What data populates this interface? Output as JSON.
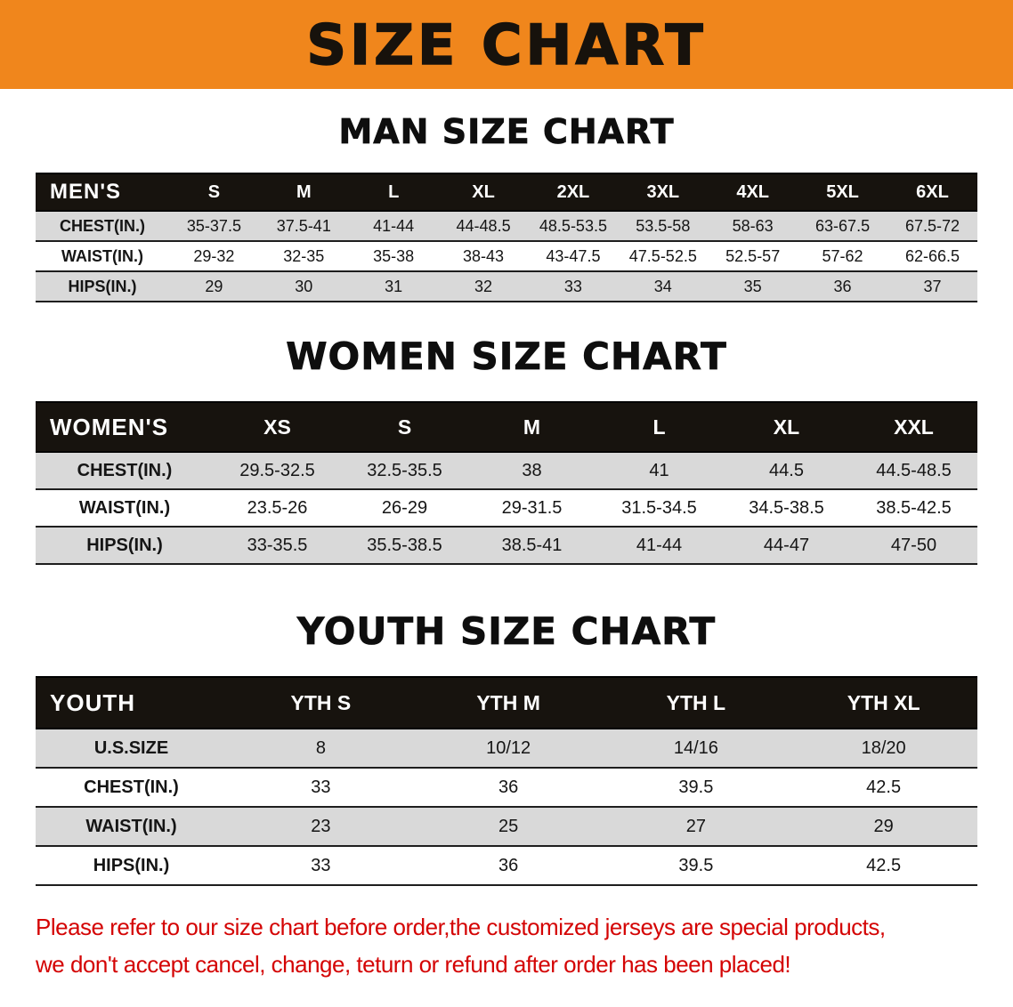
{
  "banner": {
    "title": "SIZE CHART"
  },
  "colors": {
    "banner_bg": "#f0861c",
    "table_header_bg": "#17130e",
    "row_gray": "#d9d9d9",
    "disclaimer_red": "#d40404"
  },
  "chart_data": [
    {
      "type": "table",
      "id": "men",
      "title": "MAN SIZE CHART",
      "columns": [
        "MEN'S",
        "S",
        "M",
        "L",
        "XL",
        "2XL",
        "3XL",
        "4XL",
        "5XL",
        "6XL"
      ],
      "rows": [
        [
          "CHEST(IN.)",
          "35-37.5",
          "37.5-41",
          "41-44",
          "44-48.5",
          "48.5-53.5",
          "53.5-58",
          "58-63",
          "63-67.5",
          "67.5-72"
        ],
        [
          "WAIST(IN.)",
          "29-32",
          "32-35",
          "35-38",
          "38-43",
          "43-47.5",
          "47.5-52.5",
          "52.5-57",
          "57-62",
          "62-66.5"
        ],
        [
          "HIPS(IN.)",
          "29",
          "30",
          "31",
          "32",
          "33",
          "34",
          "35",
          "36",
          "37"
        ]
      ]
    },
    {
      "type": "table",
      "id": "women",
      "title": "WOMEN SIZE CHART",
      "columns": [
        "WOMEN'S",
        "XS",
        "S",
        "M",
        "L",
        "XL",
        "XXL"
      ],
      "rows": [
        [
          "CHEST(IN.)",
          "29.5-32.5",
          "32.5-35.5",
          "38",
          "41",
          "44.5",
          "44.5-48.5"
        ],
        [
          "WAIST(IN.)",
          "23.5-26",
          "26-29",
          "29-31.5",
          "31.5-34.5",
          "34.5-38.5",
          "38.5-42.5"
        ],
        [
          "HIPS(IN.)",
          "33-35.5",
          "35.5-38.5",
          "38.5-41",
          "41-44",
          "44-47",
          "47-50"
        ]
      ]
    },
    {
      "type": "table",
      "id": "youth",
      "title": "YOUTH SIZE CHART",
      "columns": [
        "YOUTH",
        "YTH S",
        "YTH M",
        "YTH L",
        "YTH XL"
      ],
      "rows": [
        [
          "U.S.SIZE",
          "8",
          "10/12",
          "14/16",
          "18/20"
        ],
        [
          "CHEST(IN.)",
          "33",
          "36",
          "39.5",
          "42.5"
        ],
        [
          "WAIST(IN.)",
          "23",
          "25",
          "27",
          "29"
        ],
        [
          "HIPS(IN.)",
          "33",
          "36",
          "39.5",
          "42.5"
        ]
      ]
    }
  ],
  "disclaimer": {
    "line1": "Please refer to our size chart before order,the customized jerseys are special products,",
    "line2": "we don't accept cancel, change, teturn or refund after order has been placed!"
  }
}
